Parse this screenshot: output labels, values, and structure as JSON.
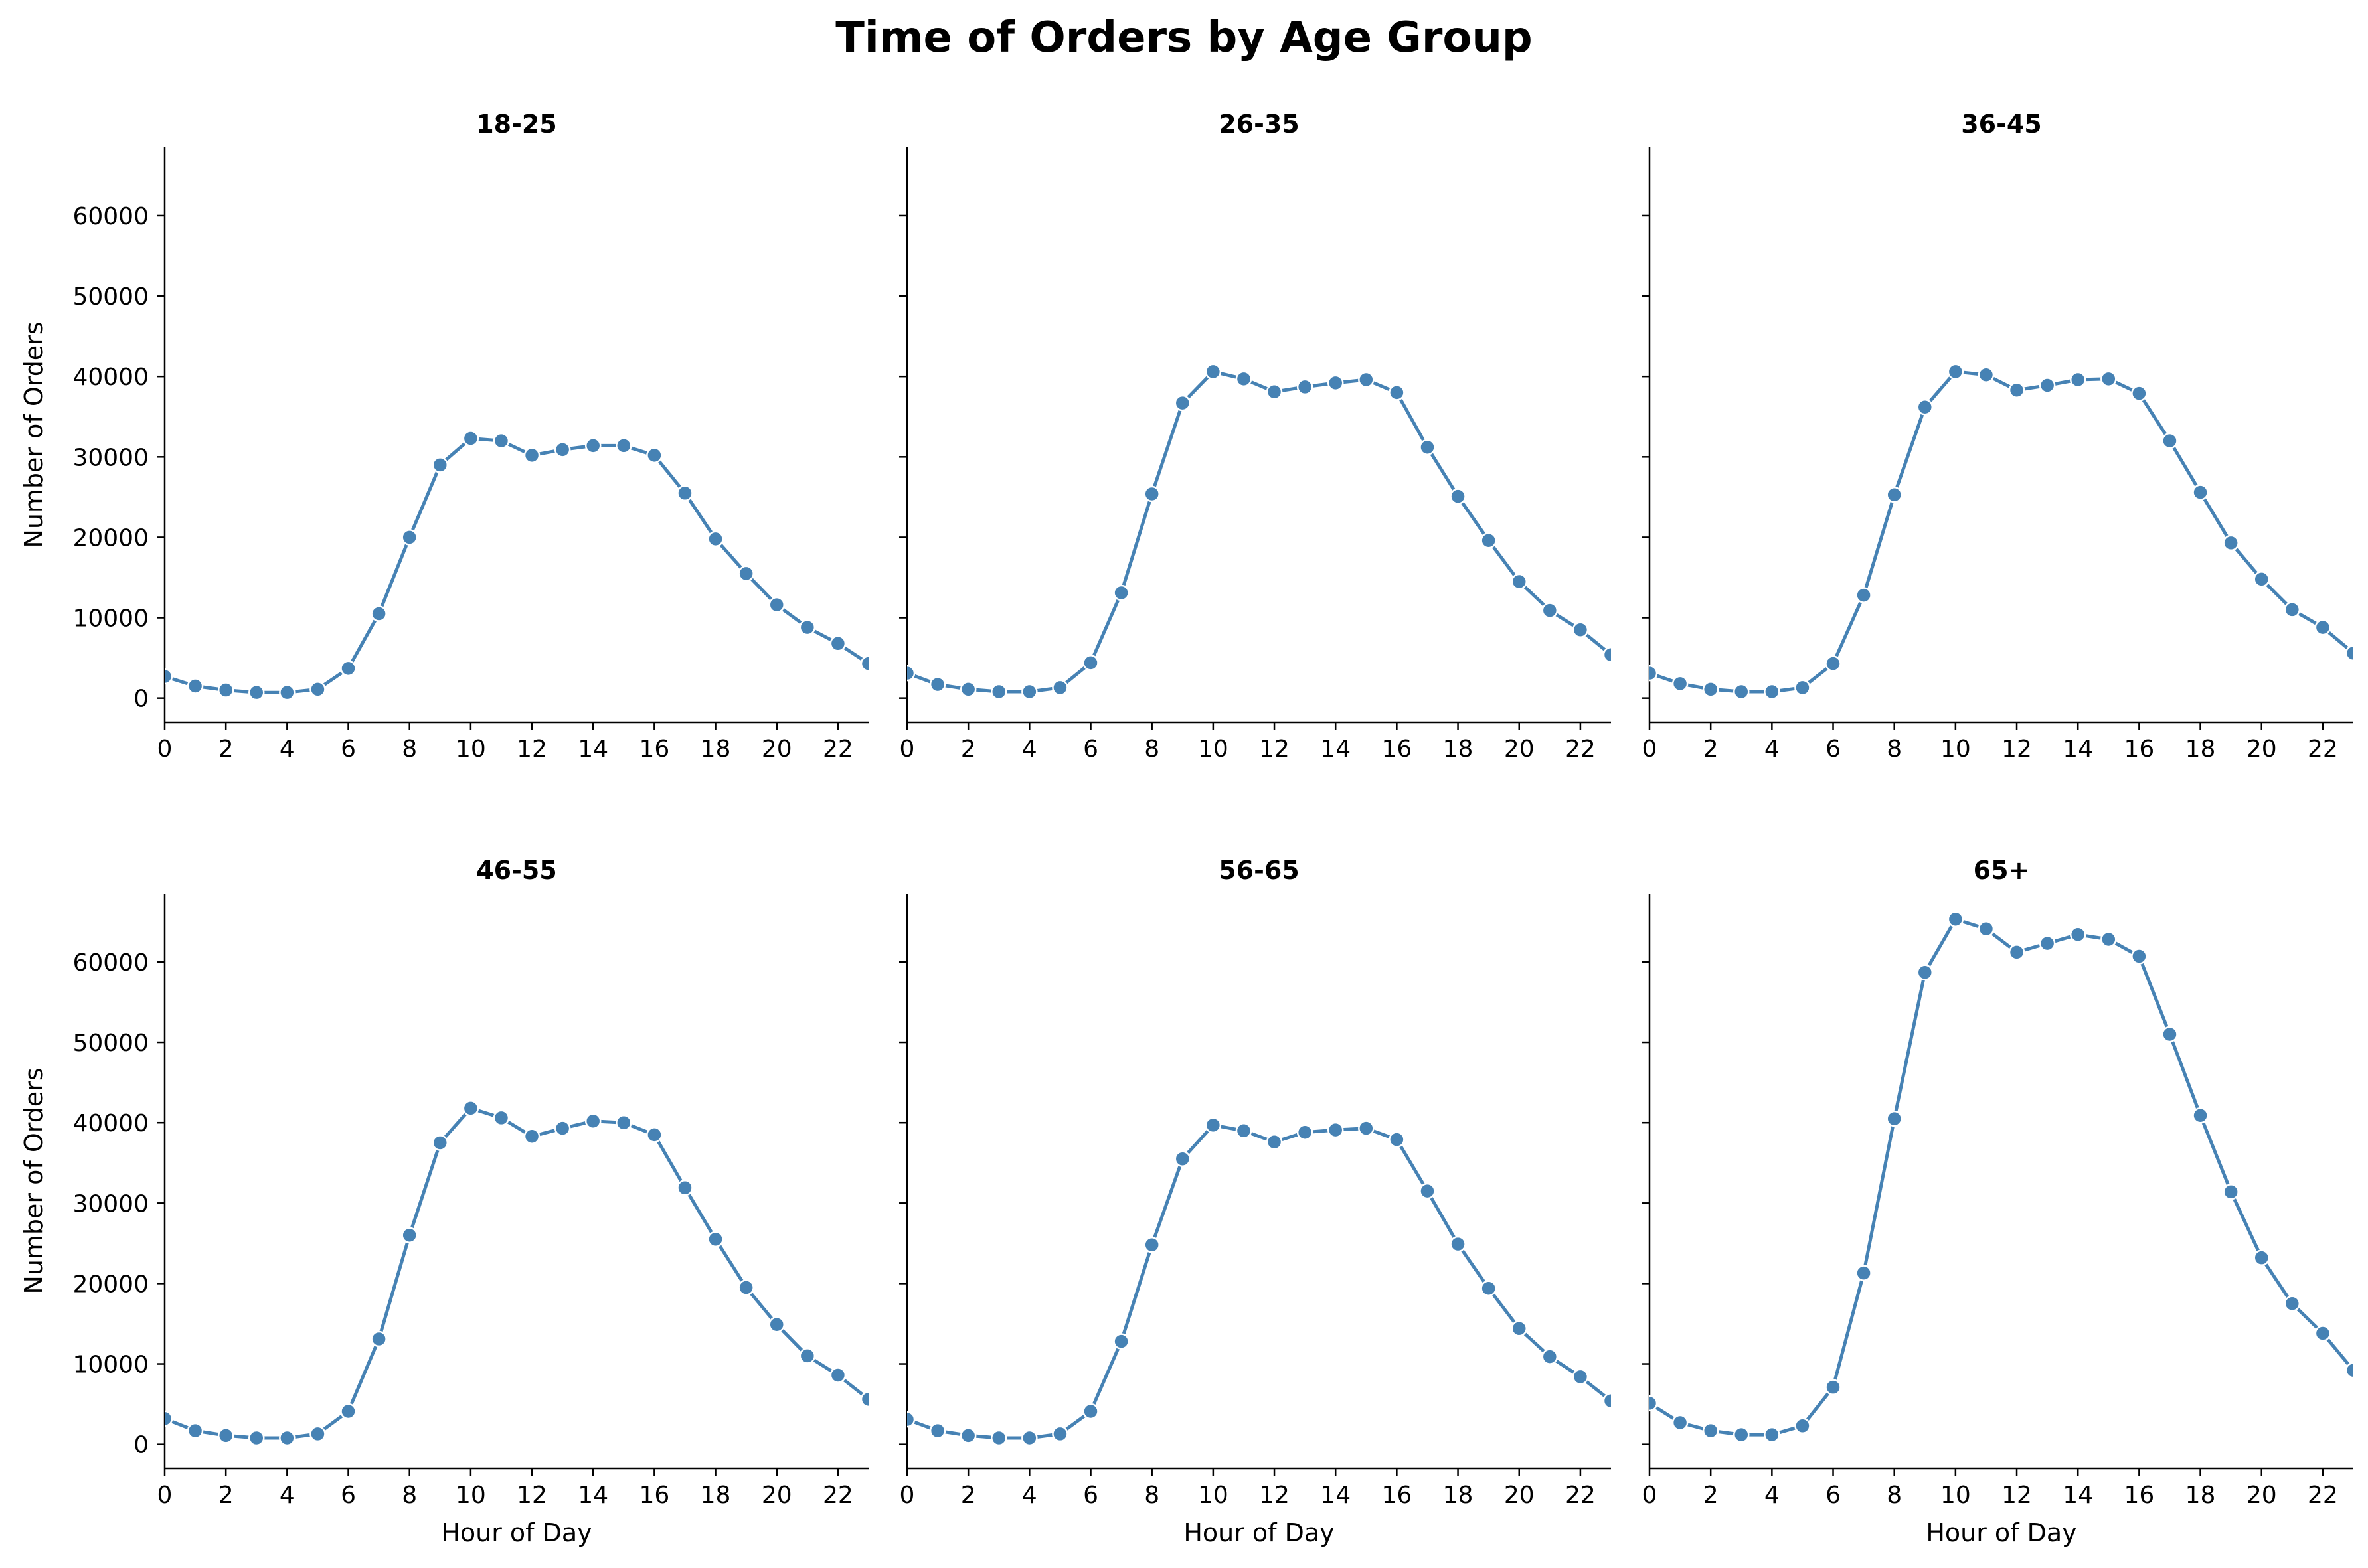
{
  "figure": {
    "title": "Time of Orders by Age Group"
  },
  "colors": {
    "series": "#4682b4",
    "marker_edge": "#ffffff",
    "axis": "#000000",
    "background": "#ffffff"
  },
  "chart_data": [
    {
      "type": "line",
      "title": "18-25",
      "xlabel": "",
      "ylabel": "Number of Orders",
      "xlim": [
        0,
        23
      ],
      "ylim": [
        -3000,
        68500
      ],
      "x_ticks": [
        0,
        2,
        4,
        6,
        8,
        10,
        12,
        14,
        16,
        18,
        20,
        22
      ],
      "y_ticks": [
        0,
        10000,
        20000,
        30000,
        40000,
        50000,
        60000
      ],
      "show_x_ticklabels": true,
      "show_y_ticklabels": true,
      "grid": false,
      "x": [
        0,
        1,
        2,
        3,
        4,
        5,
        6,
        7,
        8,
        9,
        10,
        11,
        12,
        13,
        14,
        15,
        16,
        17,
        18,
        19,
        20,
        21,
        22,
        23
      ],
      "values": [
        2700,
        1500,
        1000,
        700,
        700,
        1100,
        3700,
        10500,
        20000,
        29000,
        32300,
        32000,
        30200,
        30900,
        31400,
        31400,
        30200,
        25500,
        19800,
        15500,
        11600,
        8800,
        6800,
        4300
      ]
    },
    {
      "type": "line",
      "title": "26-35",
      "xlabel": "",
      "ylabel": "",
      "xlim": [
        0,
        23
      ],
      "ylim": [
        -3000,
        68500
      ],
      "x_ticks": [
        0,
        2,
        4,
        6,
        8,
        10,
        12,
        14,
        16,
        18,
        20,
        22
      ],
      "y_ticks": [
        0,
        10000,
        20000,
        30000,
        40000,
        50000,
        60000
      ],
      "show_x_ticklabels": true,
      "show_y_ticklabels": false,
      "grid": false,
      "x": [
        0,
        1,
        2,
        3,
        4,
        5,
        6,
        7,
        8,
        9,
        10,
        11,
        12,
        13,
        14,
        15,
        16,
        17,
        18,
        19,
        20,
        21,
        22,
        23
      ],
      "values": [
        3100,
        1700,
        1100,
        800,
        800,
        1300,
        4400,
        13100,
        25400,
        36700,
        40600,
        39700,
        38100,
        38700,
        39200,
        39600,
        38000,
        31200,
        25100,
        19600,
        14500,
        10900,
        8500,
        5400
      ]
    },
    {
      "type": "line",
      "title": "36-45",
      "xlabel": "",
      "ylabel": "",
      "xlim": [
        0,
        23
      ],
      "ylim": [
        -3000,
        68500
      ],
      "x_ticks": [
        0,
        2,
        4,
        6,
        8,
        10,
        12,
        14,
        16,
        18,
        20,
        22
      ],
      "y_ticks": [
        0,
        10000,
        20000,
        30000,
        40000,
        50000,
        60000
      ],
      "show_x_ticklabels": true,
      "show_y_ticklabels": false,
      "grid": false,
      "x": [
        0,
        1,
        2,
        3,
        4,
        5,
        6,
        7,
        8,
        9,
        10,
        11,
        12,
        13,
        14,
        15,
        16,
        17,
        18,
        19,
        20,
        21,
        22,
        23
      ],
      "values": [
        3100,
        1800,
        1100,
        800,
        800,
        1300,
        4300,
        12800,
        25300,
        36200,
        40600,
        40200,
        38300,
        38900,
        39600,
        39700,
        37900,
        32000,
        25600,
        19300,
        14800,
        11000,
        8800,
        5600
      ]
    },
    {
      "type": "line",
      "title": "46-55",
      "xlabel": "Hour of Day",
      "ylabel": "Number of Orders",
      "xlim": [
        0,
        23
      ],
      "ylim": [
        -3000,
        68500
      ],
      "x_ticks": [
        0,
        2,
        4,
        6,
        8,
        10,
        12,
        14,
        16,
        18,
        20,
        22
      ],
      "y_ticks": [
        0,
        10000,
        20000,
        30000,
        40000,
        50000,
        60000
      ],
      "show_x_ticklabels": true,
      "show_y_ticklabels": true,
      "grid": false,
      "x": [
        0,
        1,
        2,
        3,
        4,
        5,
        6,
        7,
        8,
        9,
        10,
        11,
        12,
        13,
        14,
        15,
        16,
        17,
        18,
        19,
        20,
        21,
        22,
        23
      ],
      "values": [
        3200,
        1700,
        1100,
        800,
        800,
        1300,
        4100,
        13100,
        26000,
        37500,
        41800,
        40600,
        38300,
        39300,
        40200,
        40000,
        38500,
        31900,
        25500,
        19500,
        14900,
        11000,
        8600,
        5600
      ]
    },
    {
      "type": "line",
      "title": "56-65",
      "xlabel": "Hour of Day",
      "ylabel": "",
      "xlim": [
        0,
        23
      ],
      "ylim": [
        -3000,
        68500
      ],
      "x_ticks": [
        0,
        2,
        4,
        6,
        8,
        10,
        12,
        14,
        16,
        18,
        20,
        22
      ],
      "y_ticks": [
        0,
        10000,
        20000,
        30000,
        40000,
        50000,
        60000
      ],
      "show_x_ticklabels": true,
      "show_y_ticklabels": false,
      "grid": false,
      "x": [
        0,
        1,
        2,
        3,
        4,
        5,
        6,
        7,
        8,
        9,
        10,
        11,
        12,
        13,
        14,
        15,
        16,
        17,
        18,
        19,
        20,
        21,
        22,
        23
      ],
      "values": [
        3100,
        1700,
        1100,
        800,
        800,
        1300,
        4100,
        12800,
        24800,
        35500,
        39700,
        39000,
        37600,
        38800,
        39100,
        39300,
        37900,
        31500,
        24900,
        19400,
        14400,
        10900,
        8400,
        5400
      ]
    },
    {
      "type": "line",
      "title": "65+",
      "xlabel": "Hour of Day",
      "ylabel": "",
      "xlim": [
        0,
        23
      ],
      "ylim": [
        -3000,
        68500
      ],
      "x_ticks": [
        0,
        2,
        4,
        6,
        8,
        10,
        12,
        14,
        16,
        18,
        20,
        22
      ],
      "y_ticks": [
        0,
        10000,
        20000,
        30000,
        40000,
        50000,
        60000
      ],
      "show_x_ticklabels": true,
      "show_y_ticklabels": false,
      "grid": false,
      "x": [
        0,
        1,
        2,
        3,
        4,
        5,
        6,
        7,
        8,
        9,
        10,
        11,
        12,
        13,
        14,
        15,
        16,
        17,
        18,
        19,
        20,
        21,
        22,
        23
      ],
      "values": [
        5100,
        2700,
        1700,
        1200,
        1200,
        2300,
        7100,
        21300,
        40500,
        58700,
        65300,
        64100,
        61200,
        62300,
        63400,
        62800,
        60700,
        51000,
        40900,
        31400,
        23200,
        17500,
        13800,
        9200
      ]
    }
  ]
}
